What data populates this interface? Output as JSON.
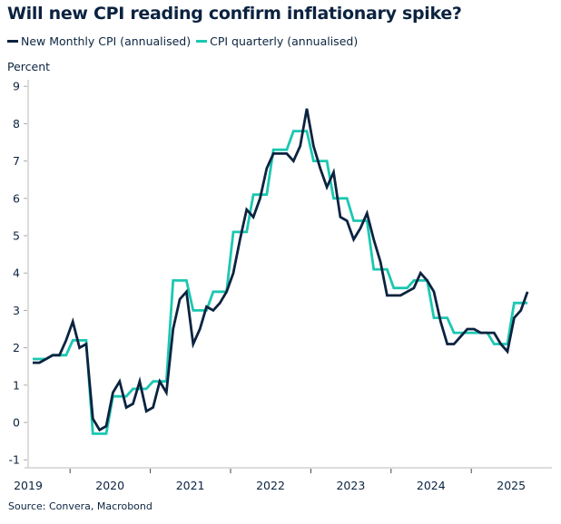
{
  "chart_data": {
    "type": "line",
    "title": "Will new CPI reading confirm inflationary spike?",
    "ylabel": "Percent",
    "xlabel": "",
    "source": "Source: Convera, Macrobond",
    "ylim": [
      -1,
      9
    ],
    "yticks": [
      "-1",
      "0",
      "1",
      "2",
      "3",
      "4",
      "5",
      "6",
      "7",
      "8",
      "9"
    ],
    "xtick_labels": [
      "2019",
      "2020",
      "2021",
      "2022",
      "2023",
      "2024",
      "2025"
    ],
    "grid": false,
    "legend_position": "top-left",
    "x_start": "2019-07",
    "x_end": "2025-09",
    "frequency": "monthly",
    "series": [
      {
        "name": "New Monthly CPI (annualised)",
        "color": "#0b2340",
        "values": [
          1.6,
          1.6,
          1.7,
          1.8,
          1.8,
          2.2,
          2.7,
          2.0,
          2.1,
          0.1,
          -0.2,
          -0.1,
          0.8,
          1.1,
          0.4,
          0.5,
          1.1,
          0.3,
          0.4,
          1.1,
          0.8,
          2.5,
          3.3,
          3.5,
          2.1,
          2.5,
          3.1,
          3.0,
          3.2,
          3.5,
          4.0,
          4.9,
          5.7,
          5.5,
          6.0,
          6.8,
          7.2,
          7.2,
          7.2,
          7.0,
          7.4,
          8.4,
          7.4,
          6.8,
          6.3,
          6.7,
          5.5,
          5.4,
          4.9,
          5.2,
          5.6,
          4.9,
          4.3,
          3.4,
          3.4,
          3.4,
          3.5,
          3.6,
          4.0,
          3.8,
          3.5,
          2.7,
          2.1,
          2.1,
          2.3,
          2.5,
          2.5,
          2.4,
          2.4,
          2.4,
          2.1,
          1.9,
          2.8,
          3.0,
          3.5
        ]
      },
      {
        "name": "CPI quarterly (annualised)",
        "color": "#1cc7b1",
        "values": [
          1.7,
          1.7,
          1.7,
          1.8,
          1.8,
          1.8,
          2.2,
          2.2,
          2.2,
          -0.3,
          -0.3,
          -0.3,
          0.7,
          0.7,
          0.7,
          0.9,
          0.9,
          0.9,
          1.1,
          1.1,
          1.1,
          3.8,
          3.8,
          3.8,
          3.0,
          3.0,
          3.0,
          3.5,
          3.5,
          3.5,
          5.1,
          5.1,
          5.1,
          6.1,
          6.1,
          6.1,
          7.3,
          7.3,
          7.3,
          7.8,
          7.8,
          7.8,
          7.0,
          7.0,
          7.0,
          6.0,
          6.0,
          6.0,
          5.4,
          5.4,
          5.4,
          4.1,
          4.1,
          4.1,
          3.6,
          3.6,
          3.6,
          3.8,
          3.8,
          3.8,
          2.8,
          2.8,
          2.8,
          2.4,
          2.4,
          2.4,
          2.4,
          2.4,
          2.4,
          2.1,
          2.1,
          2.1,
          3.2,
          3.2,
          3.2
        ]
      }
    ]
  }
}
